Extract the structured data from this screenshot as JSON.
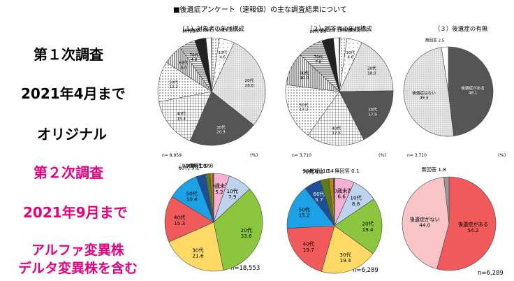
{
  "header": "■後遺症アンケート（速報値）の主な調査結果について",
  "side_labels": {
    "first_survey": "第１次調査",
    "first_period": "2021年4月まで",
    "first_variant": "オリジナル",
    "second_survey": "第２次調査",
    "second_period": "2021年9月まで",
    "second_variant_line1": "アルファ変異株",
    "second_variant_line2": "デルタ変異株を含む"
  },
  "colors": {
    "first_text": "#000000",
    "second_text": "#e6007e",
    "gray_dark": "#555555",
    "sequela_yes_2": "#f05a5a",
    "sequela_no_2": "#f8c4c8",
    "no_answer_2": "#9a9a9a"
  },
  "chart_data": [
    {
      "type": "pie",
      "title": "（１）対象者の年代構成",
      "n_label": "n= 8,959",
      "unit_label": "(%)",
      "slices": [
        {
          "label": "10歳未満",
          "value": 2.3,
          "color": "#ffffff",
          "pattern": "dots"
        },
        {
          "label": "10代",
          "value": 4.6,
          "color": "#ffffff",
          "pattern": "sparse"
        },
        {
          "label": "20代",
          "value": 28.8,
          "color": "#ffffff",
          "pattern": "fine"
        },
        {
          "label": "30代",
          "value": 20.9,
          "color": "#555555",
          "pattern": "none"
        },
        {
          "label": "40代",
          "value": 15.4,
          "color": "#ffffff",
          "pattern": "grid"
        },
        {
          "label": "50代",
          "value": 12.2,
          "color": "#cfcfcf",
          "pattern": "dots"
        },
        {
          "label": "60代",
          "value": 6.0,
          "color": "#ffffff",
          "pattern": "vertical"
        },
        {
          "label": "70代",
          "value": 4.8,
          "color": "#ffffff",
          "pattern": "horizontal"
        },
        {
          "label": "80代",
          "value": 3.4,
          "color": "#222222",
          "pattern": "none"
        },
        {
          "label": "90代",
          "value": 1.6,
          "color": "#ffffff",
          "pattern": "none"
        },
        {
          "label": "100歳以上",
          "value": 0.09,
          "color": "#bbbbbb",
          "pattern": "none"
        }
      ]
    },
    {
      "type": "pie",
      "title": "（２）回答者の年代構成",
      "n_label": "n= 3,710",
      "unit_label": "(%)",
      "slices": [
        {
          "label": "無回答",
          "value": 0.2,
          "color": "#888888",
          "pattern": "none"
        },
        {
          "label": "10歳未満",
          "value": 2.1,
          "color": "#ffffff",
          "pattern": "dots"
        },
        {
          "label": "10代",
          "value": 4.6,
          "color": "#ffffff",
          "pattern": "sparse"
        },
        {
          "label": "20代",
          "value": 18.0,
          "color": "#ffffff",
          "pattern": "fine"
        },
        {
          "label": "30代",
          "value": 17.9,
          "color": "#555555",
          "pattern": "none"
        },
        {
          "label": "40代",
          "value": 17.5,
          "color": "#ffffff",
          "pattern": "grid"
        },
        {
          "label": "50代",
          "value": 17.2,
          "color": "#cfcfcf",
          "pattern": "dots"
        },
        {
          "label": "60代",
          "value": 10.0,
          "color": "#ffffff",
          "pattern": "vertical"
        },
        {
          "label": "70代",
          "value": 7.8,
          "color": "#ffffff",
          "pattern": "horizontal"
        },
        {
          "label": "80代",
          "value": 3.5,
          "color": "#222222",
          "pattern": "none"
        },
        {
          "label": "90代",
          "value": 1.7,
          "color": "#ffffff",
          "pattern": "none"
        },
        {
          "label": "100歳以上",
          "value": 0.1,
          "color": "#bbbbbb",
          "pattern": "none"
        }
      ]
    },
    {
      "type": "pie",
      "title": "（３）後遺症の有無",
      "n_label": "n= 3,710",
      "unit_label": "(%)",
      "slices": [
        {
          "label": "後遺症がある",
          "value": 48.1,
          "color": "#555555",
          "pattern": "none"
        },
        {
          "label": "後遺症はない",
          "value": 49.3,
          "color": "#ffffff",
          "pattern": "fine"
        },
        {
          "label": "無回答",
          "value": 2.5,
          "color": "#ffffff",
          "pattern": "none"
        }
      ]
    },
    {
      "type": "pie",
      "n_label": "n=18,553",
      "slices": [
        {
          "label": "10歳未満",
          "value": 5.2,
          "color": "#f6b0d2"
        },
        {
          "label": "10代",
          "value": 7.9,
          "color": "#bdd3ee"
        },
        {
          "label": "20代",
          "value": 33.6,
          "color": "#8cc63f"
        },
        {
          "label": "30代",
          "value": 21.6,
          "color": "#ffd966"
        },
        {
          "label": "40代",
          "value": 15.3,
          "color": "#f05a5a"
        },
        {
          "label": "50代",
          "value": 10.4,
          "color": "#1da1e6"
        },
        {
          "label": "60代",
          "value": 3.1,
          "color": "#1f4e96"
        },
        {
          "label": "70代",
          "value": 1.5,
          "color": "#5a7a1e"
        },
        {
          "label": "80代",
          "value": 0.9,
          "color": "#b8860b"
        },
        {
          "label": "90代以上",
          "value": 0.3,
          "color": "#7030a0"
        }
      ]
    },
    {
      "type": "pie",
      "n_label": "n=6,289",
      "slices": [
        {
          "label": "無回答",
          "value": 0.1,
          "color": "#888888"
        },
        {
          "label": "10歳未満",
          "value": 6.6,
          "color": "#f6b0d2"
        },
        {
          "label": "10代",
          "value": 8.8,
          "color": "#bdd3ee"
        },
        {
          "label": "20代",
          "value": 19.4,
          "color": "#8cc63f"
        },
        {
          "label": "30代",
          "value": 19.4,
          "color": "#ffd966"
        },
        {
          "label": "40代",
          "value": 19.7,
          "color": "#f05a5a"
        },
        {
          "label": "50代",
          "value": 15.2,
          "color": "#1da1e6"
        },
        {
          "label": "60代",
          "value": 5.7,
          "color": "#1f4e96"
        },
        {
          "label": "70代",
          "value": 3.0,
          "color": "#5a7a1e"
        },
        {
          "label": "80代",
          "value": 1.5,
          "color": "#b8860b"
        },
        {
          "label": "90代以上",
          "value": 0.4,
          "color": "#7030a0"
        }
      ]
    },
    {
      "type": "pie",
      "n_label": "n=6,289",
      "slices": [
        {
          "label": "後遺症がある",
          "value": 54.2,
          "color": "#f05a5a"
        },
        {
          "label": "後遺症がない",
          "value": 44.0,
          "color": "#f8c4c8"
        },
        {
          "label": "無回答",
          "value": 1.8,
          "color": "#9a9a9a"
        }
      ]
    }
  ]
}
